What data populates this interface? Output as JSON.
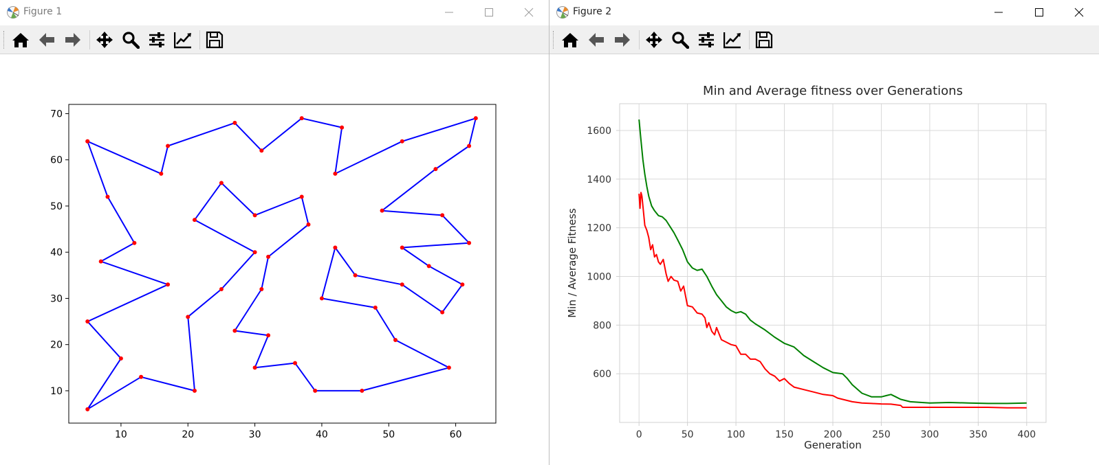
{
  "windows": [
    {
      "title": "Figure 1"
    },
    {
      "title": "Figure 2"
    }
  ],
  "icons": {
    "app": "matplotlib-app-icon",
    "window_controls": [
      "minimize-icon",
      "maximize-icon",
      "close-icon"
    ],
    "toolbar": [
      "home-icon",
      "back-arrow-icon",
      "forward-arrow-icon",
      "pan-move-icon",
      "zoom-magnifier-icon",
      "subplots-config-icon",
      "edit-axis-line-icon",
      "save-floppy-icon"
    ]
  },
  "colors": {
    "route_line": "#0000ff",
    "city_marker": "#ff0000",
    "min_fitness": "#ff0000",
    "avg_fitness": "#008000"
  },
  "chart_data": [
    {
      "type": "line",
      "title": "",
      "xlabel": "",
      "ylabel": "",
      "xlim": [
        2.2,
        66
      ],
      "ylim": [
        3,
        72
      ],
      "x_ticks": [
        10,
        20,
        30,
        40,
        50,
        60
      ],
      "y_ticks": [
        10,
        20,
        30,
        40,
        50,
        60,
        70
      ],
      "grid": false,
      "markers": true,
      "series": [
        {
          "x": [
            5,
            8,
            12,
            7,
            17,
            5,
            10,
            5,
            13,
            21,
            20,
            25,
            30,
            21,
            25,
            30,
            37,
            38,
            32,
            31,
            27,
            32,
            30,
            36,
            39,
            46,
            59,
            51,
            48,
            40,
            42,
            45,
            52,
            58,
            61,
            56,
            52,
            62,
            58,
            49,
            57,
            62,
            63,
            52,
            42,
            43,
            37,
            31,
            27,
            17,
            16,
            5
          ],
          "y": [
            64,
            52,
            42,
            38,
            33,
            25,
            17,
            6,
            13,
            10,
            26,
            32,
            40,
            47,
            55,
            48,
            52,
            46,
            39,
            32,
            23,
            22,
            15,
            16,
            10,
            10,
            15,
            21,
            28,
            30,
            41,
            35,
            33,
            27,
            33,
            37,
            41,
            42,
            48,
            49,
            58,
            63,
            69,
            64,
            57,
            67,
            69,
            62,
            68,
            63,
            57,
            64
          ]
        }
      ]
    },
    {
      "type": "line",
      "title": "Min and Average fitness over Generations",
      "xlabel": "Generation",
      "ylabel": "Min / Average Fitness",
      "xlim": [
        -20,
        420
      ],
      "ylim": [
        400,
        1710
      ],
      "x_ticks": [
        0,
        50,
        100,
        150,
        200,
        250,
        300,
        350,
        400
      ],
      "y_ticks": [
        600,
        800,
        1000,
        1200,
        1400,
        1600
      ],
      "grid": true,
      "legend": "none",
      "series": [
        {
          "x": [
            0,
            2,
            4,
            6,
            8,
            10,
            13,
            16,
            20,
            24,
            28,
            32,
            36,
            40,
            45,
            50,
            55,
            60,
            65,
            70,
            75,
            80,
            85,
            90,
            95,
            100,
            105,
            110,
            115,
            120,
            130,
            140,
            150,
            160,
            170,
            180,
            190,
            200,
            210,
            215,
            220,
            230,
            240,
            250,
            255,
            260,
            265,
            270,
            280,
            300,
            320,
            340,
            360,
            380,
            400
          ],
          "y": [
            1645,
            1560,
            1480,
            1420,
            1370,
            1330,
            1290,
            1270,
            1250,
            1245,
            1230,
            1205,
            1180,
            1150,
            1110,
            1060,
            1035,
            1025,
            1030,
            1000,
            960,
            925,
            900,
            875,
            860,
            850,
            855,
            845,
            820,
            805,
            780,
            750,
            725,
            710,
            675,
            650,
            625,
            605,
            600,
            580,
            555,
            520,
            505,
            505,
            510,
            515,
            505,
            495,
            485,
            480,
            482,
            480,
            478,
            478,
            480
          ],
          "name": ""
        },
        {
          "x": [
            0,
            1,
            2,
            3,
            4,
            5,
            6,
            8,
            10,
            12,
            14,
            16,
            18,
            20,
            22,
            25,
            28,
            30,
            33,
            36,
            40,
            43,
            46,
            50,
            55,
            60,
            65,
            68,
            70,
            72,
            75,
            78,
            80,
            85,
            90,
            95,
            100,
            105,
            110,
            115,
            120,
            125,
            130,
            135,
            140,
            145,
            150,
            155,
            160,
            170,
            180,
            190,
            200,
            205,
            210,
            215,
            220,
            230,
            240,
            250,
            260,
            270,
            272,
            280,
            300,
            320,
            340,
            360,
            380,
            400
          ],
          "y": [
            1340,
            1280,
            1345,
            1330,
            1290,
            1250,
            1210,
            1190,
            1160,
            1110,
            1130,
            1080,
            1090,
            1060,
            1050,
            1070,
            1010,
            980,
            1000,
            985,
            980,
            940,
            960,
            880,
            875,
            850,
            845,
            830,
            790,
            810,
            775,
            760,
            790,
            740,
            730,
            720,
            715,
            680,
            680,
            660,
            660,
            650,
            620,
            600,
            590,
            570,
            580,
            560,
            545,
            535,
            525,
            515,
            510,
            500,
            495,
            490,
            485,
            480,
            478,
            476,
            475,
            470,
            462,
            462,
            462,
            462,
            462,
            462,
            460,
            460
          ],
          "name": ""
        }
      ]
    }
  ]
}
